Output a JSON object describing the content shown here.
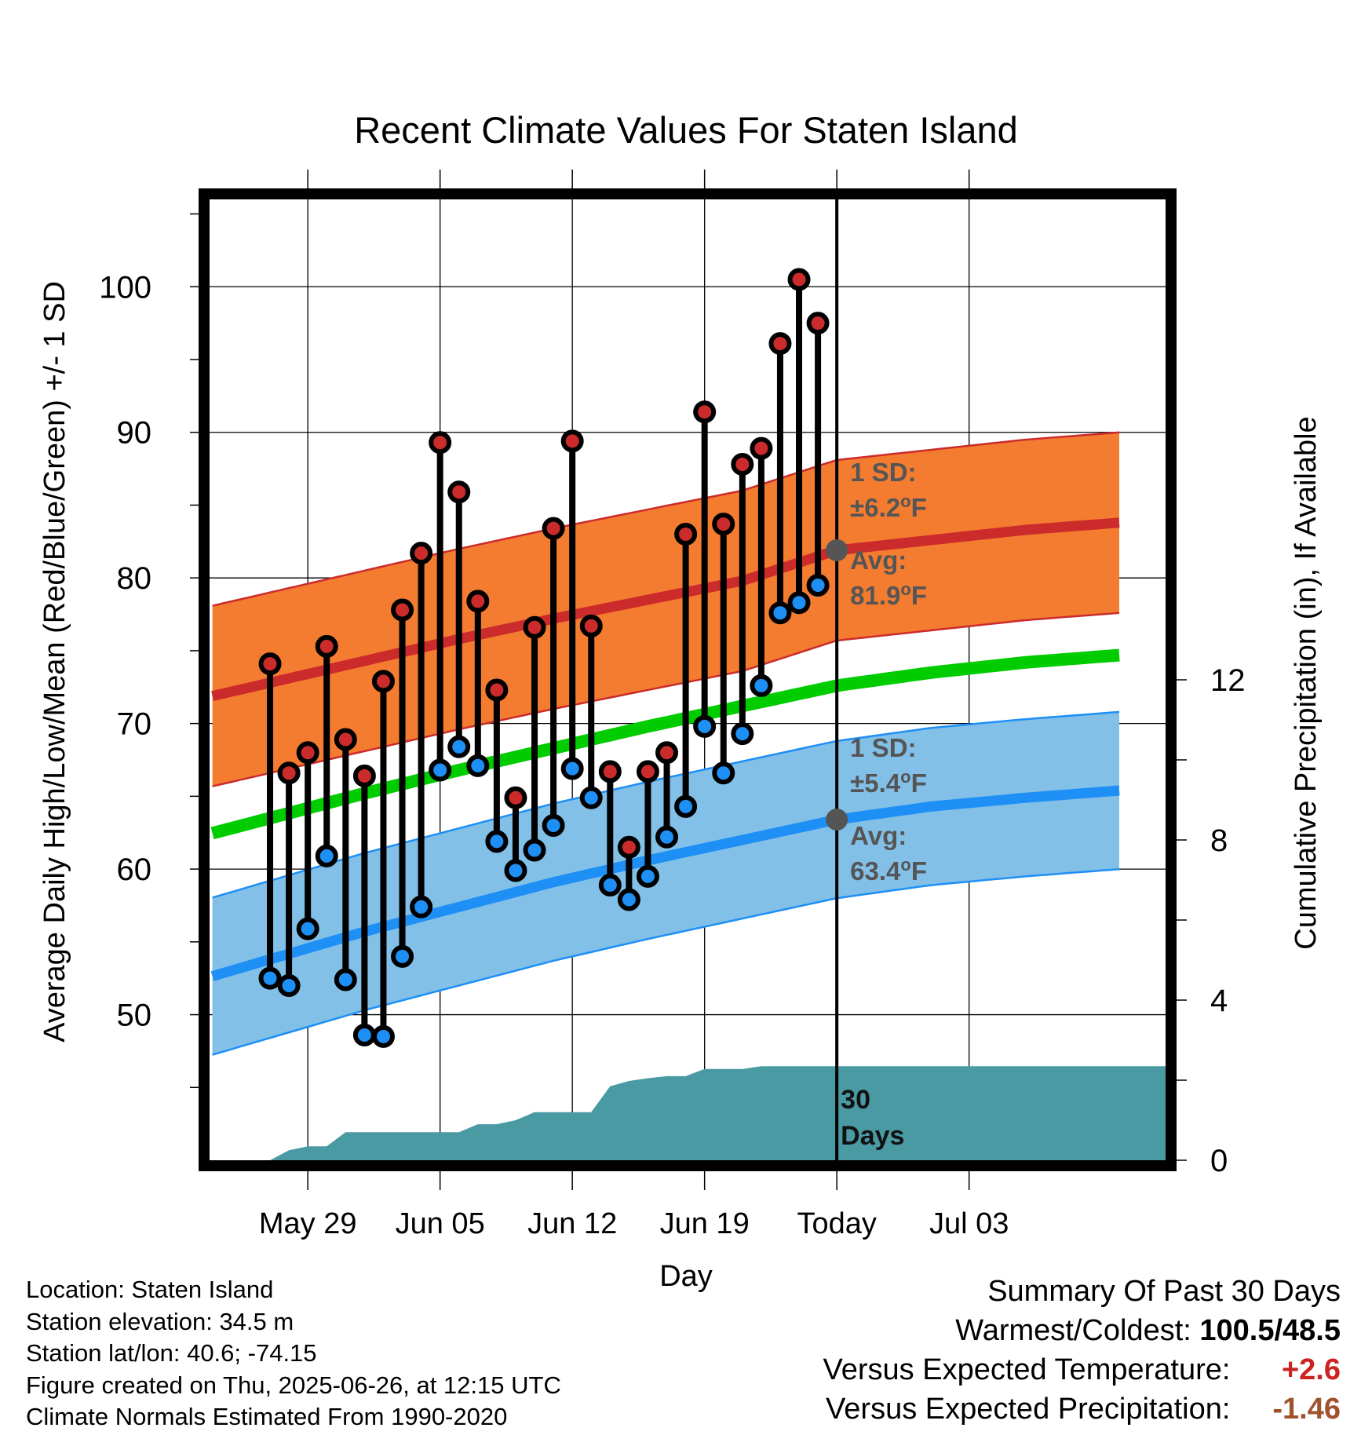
{
  "chart_data": {
    "type": "line",
    "title": "Recent Climate Values For Staten Island",
    "xlabel": "Day",
    "ylabel": "Average Daily High/Low/Mean (Red/Blue/Green) +/- 1 SD",
    "ylabel_right": "Cumulative Precipitation (in), If Available",
    "ylim": [
      40,
      106
    ],
    "ylim_right": [
      0,
      24
    ],
    "yticks": [
      50,
      60,
      70,
      80,
      90,
      100
    ],
    "yticks_right": [
      0,
      4,
      8,
      12
    ],
    "xlim_days": [
      -33.2,
      17.4
    ],
    "x_ticks": [
      {
        "label": "May 29",
        "day": -28
      },
      {
        "label": "Jun 05",
        "day": -21
      },
      {
        "label": "Jun 12",
        "day": -14
      },
      {
        "label": "Jun 19",
        "day": -7
      },
      {
        "label": "Today",
        "day": 0
      },
      {
        "label": "Jul 03",
        "day": 7
      }
    ],
    "today_label": "30\nDays",
    "normals": {
      "days": [
        -30,
        -25,
        -20,
        -15,
        -10,
        -5,
        0,
        5,
        10,
        15
      ],
      "high_avg": [
        72.8,
        74.3,
        75.8,
        77.2,
        78.5,
        79.8,
        81.9,
        82.6,
        83.3,
        83.8
      ],
      "low_avg": [
        53.8,
        55.7,
        57.4,
        59.1,
        60.6,
        62.0,
        63.4,
        64.3,
        64.9,
        65.4
      ],
      "mean_avg": [
        63.5,
        65.2,
        66.8,
        68.3,
        69.8,
        71.2,
        72.6,
        73.5,
        74.2,
        74.7
      ],
      "high_sd": 6.2,
      "low_sd": 5.4
    },
    "high_annotation": {
      "sd": "1 SD:",
      "sd_value": "±6.2",
      "avg": "Avg:",
      "avg_value": "81.9",
      "unit": "F"
    },
    "low_annotation": {
      "sd": "1 SD:",
      "sd_value": "±5.4",
      "avg": "Avg:",
      "avg_value": "63.4",
      "unit": "F"
    },
    "daily": [
      {
        "day": -30,
        "high": 74.1,
        "low": 52.5
      },
      {
        "day": -29,
        "high": 66.6,
        "low": 52.0
      },
      {
        "day": -28,
        "high": 68.0,
        "low": 55.9
      },
      {
        "day": -27,
        "high": 75.3,
        "low": 60.9
      },
      {
        "day": -26,
        "high": 68.9,
        "low": 52.4
      },
      {
        "day": -25,
        "high": 66.4,
        "low": 48.6
      },
      {
        "day": -24,
        "high": 72.9,
        "low": 48.5
      },
      {
        "day": -23,
        "high": 77.8,
        "low": 54.0
      },
      {
        "day": -22,
        "high": 81.7,
        "low": 57.4
      },
      {
        "day": -21,
        "high": 89.3,
        "low": 66.8
      },
      {
        "day": -20,
        "high": 85.9,
        "low": 68.4
      },
      {
        "day": -19,
        "high": 78.4,
        "low": 67.1
      },
      {
        "day": -18,
        "high": 72.3,
        "low": 61.9
      },
      {
        "day": -17,
        "high": 64.9,
        "low": 59.9
      },
      {
        "day": -16,
        "high": 76.6,
        "low": 61.3
      },
      {
        "day": -15,
        "high": 83.4,
        "low": 63.0
      },
      {
        "day": -14,
        "high": 89.4,
        "low": 66.9
      },
      {
        "day": -13,
        "high": 76.7,
        "low": 64.9
      },
      {
        "day": -12,
        "high": 66.7,
        "low": 58.9
      },
      {
        "day": -11,
        "high": 61.5,
        "low": 57.9
      },
      {
        "day": -10,
        "high": 66.7,
        "low": 59.5
      },
      {
        "day": -9,
        "high": 68.0,
        "low": 62.2
      },
      {
        "day": -8,
        "high": 83.0,
        "low": 64.3
      },
      {
        "day": -7,
        "high": 91.4,
        "low": 69.8
      },
      {
        "day": -6,
        "high": 83.7,
        "low": 66.6
      },
      {
        "day": -5,
        "high": 87.8,
        "low": 69.3
      },
      {
        "day": -4,
        "high": 88.9,
        "low": 72.6
      },
      {
        "day": -3,
        "high": 96.1,
        "low": 77.6
      },
      {
        "day": -2,
        "high": 100.5,
        "low": 78.3
      },
      {
        "day": -1,
        "high": 97.5,
        "low": 79.5
      }
    ],
    "precip_cumulative": {
      "days": [
        -33.2,
        -30,
        -29,
        -28,
        -27,
        -26,
        -25,
        -24,
        -23,
        -22,
        -21,
        -20,
        -19,
        -18,
        -17,
        -16,
        -15,
        -14,
        -13,
        -12,
        -11,
        -10,
        -9,
        -8,
        -7,
        -6,
        -5,
        -4,
        -3,
        -2,
        -1,
        0,
        17.4
      ],
      "values": [
        0,
        0,
        0.25,
        0.35,
        0.35,
        0.7,
        0.7,
        0.7,
        0.7,
        0.7,
        0.7,
        0.7,
        0.9,
        0.9,
        1.0,
        1.2,
        1.2,
        1.2,
        1.2,
        1.85,
        1.98,
        2.05,
        2.1,
        2.1,
        2.28,
        2.28,
        2.28,
        2.35,
        2.35,
        2.35,
        2.35,
        2.35,
        2.35
      ]
    },
    "colors": {
      "high": "#cc2b2b",
      "high_band": "#f47c30",
      "low": "#1e8ff5",
      "low_band": "#82c0e8",
      "mean": "#00cc00",
      "precip": "#4a9aa4",
      "annotation": "#555555"
    }
  },
  "info": {
    "location": "Location: Staten Island",
    "elevation": "Station elevation: 34.5 m",
    "latlon": "Station lat/lon: 40.6; -74.15",
    "created": "Figure created on Thu, 2025-06-26, at 12:15 UTC",
    "normals": "Climate Normals Estimated From 1990-2020"
  },
  "summary": {
    "title": "Summary Of Past 30 Days",
    "warm_cold_label": "Warmest/Coldest:",
    "warm_cold_value": "100.5/48.5",
    "temp_label": "Versus Expected Temperature:",
    "temp_value": "+2.6",
    "temp_color": "#cc2222",
    "precip_label": "Versus Expected Precipitation:",
    "precip_value": "-1.46",
    "precip_color": "#a0522d"
  }
}
